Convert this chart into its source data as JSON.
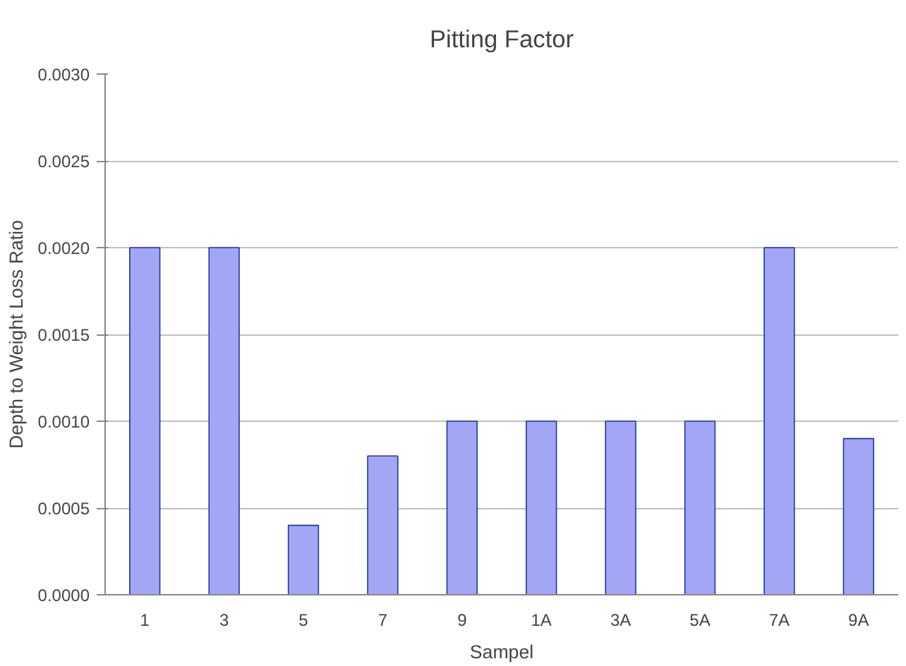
{
  "chart_data": {
    "type": "bar",
    "title": "Pitting Factor",
    "xlabel": "Sampel",
    "ylabel": "Depth to Weight Loss Ratio",
    "categories": [
      "1",
      "3",
      "5",
      "7",
      "9",
      "1A",
      "3A",
      "5A",
      "7A",
      "9A"
    ],
    "values": [
      0.002,
      0.002,
      0.0004,
      0.0008,
      0.001,
      0.001,
      0.001,
      0.001,
      0.002,
      0.0009
    ],
    "color": "#a3a6f5",
    "ylim": [
      0,
      0.003
    ],
    "yticks": [
      {
        "value": 0,
        "label": "0.0000"
      },
      {
        "value": 0.0005,
        "label": "0.0005"
      },
      {
        "value": 0.001,
        "label": "0.0010"
      },
      {
        "value": 0.0015,
        "label": "0.0015"
      },
      {
        "value": 0.002,
        "label": "0.0020"
      },
      {
        "value": 0.0025,
        "label": "0.0025"
      },
      {
        "value": 0.003,
        "label": "0.0030"
      }
    ],
    "grid": "y"
  }
}
